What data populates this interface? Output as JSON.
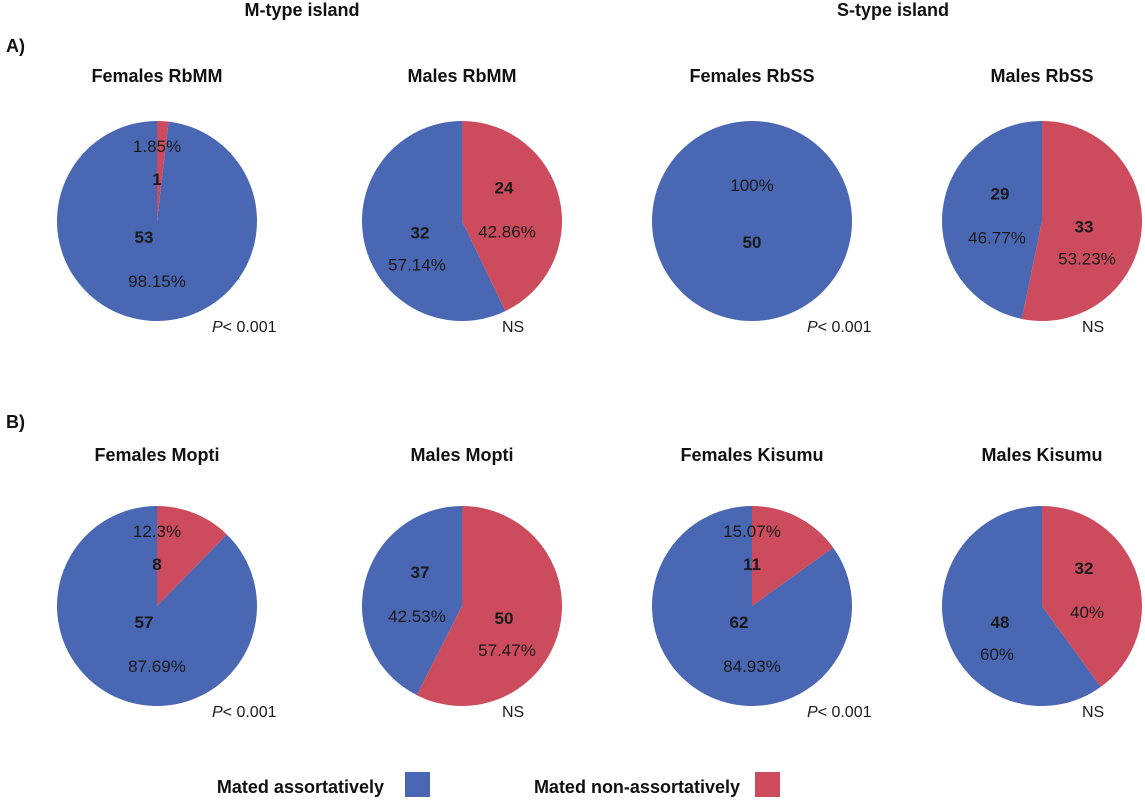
{
  "headers": {
    "m_type": "M-type island",
    "s_type": "S-type island"
  },
  "panels": {
    "a": "A)",
    "b": "B)"
  },
  "colors": {
    "assortative": "#4a67b4",
    "non_assortative": "#cc4b5c"
  },
  "legend": {
    "assortative": "Mated assortatively",
    "non_assortative": "Mated non-assortatively"
  },
  "chart_data": [
    {
      "type": "pie",
      "title": "Females RbMM",
      "categories": [
        "Mated assortatively",
        "Mated non-assortatively"
      ],
      "values": [
        53,
        1
      ],
      "percent_labels": [
        "98.15%",
        "1.85%"
      ],
      "stat_prefix": "P",
      "stat_suffix": "< 0.001"
    },
    {
      "type": "pie",
      "title": "Males RbMM",
      "categories": [
        "Mated assortatively",
        "Mated non-assortatively"
      ],
      "values": [
        32,
        24
      ],
      "percent_labels": [
        "57.14%",
        "42.86%"
      ],
      "stat_prefix": "",
      "stat_suffix": "NS"
    },
    {
      "type": "pie",
      "title": "Females RbSS",
      "categories": [
        "Mated assortatively",
        "Mated non-assortatively"
      ],
      "values": [
        50,
        0
      ],
      "percent_labels": [
        "100%",
        ""
      ],
      "stat_prefix": "P",
      "stat_suffix": "< 0.001"
    },
    {
      "type": "pie",
      "title": "Males RbSS",
      "categories": [
        "Mated assortatively",
        "Mated non-assortatively"
      ],
      "values": [
        29,
        33
      ],
      "percent_labels": [
        "46.77%",
        "53.23%"
      ],
      "stat_prefix": "",
      "stat_suffix": "NS"
    },
    {
      "type": "pie",
      "title": "Females Mopti",
      "categories": [
        "Mated assortatively",
        "Mated non-assortatively"
      ],
      "values": [
        57,
        8
      ],
      "percent_labels": [
        "87.69%",
        "12.3%"
      ],
      "stat_prefix": "P",
      "stat_suffix": "< 0.001"
    },
    {
      "type": "pie",
      "title": "Males Mopti",
      "categories": [
        "Mated assortatively",
        "Mated non-assortatively"
      ],
      "values": [
        37,
        50
      ],
      "percent_labels": [
        "42.53%",
        "57.47%"
      ],
      "stat_prefix": "",
      "stat_suffix": "NS"
    },
    {
      "type": "pie",
      "title": "Females Kisumu",
      "categories": [
        "Mated assortatively",
        "Mated non-assortatively"
      ],
      "values": [
        62,
        11
      ],
      "percent_labels": [
        "84.93%",
        "15.07%"
      ],
      "stat_prefix": "P",
      "stat_suffix": "< 0.001"
    },
    {
      "type": "pie",
      "title": "Males Kisumu",
      "categories": [
        "Mated assortatively",
        "Mated non-assortatively"
      ],
      "values": [
        48,
        32
      ],
      "percent_labels": [
        "60%",
        "40%"
      ],
      "stat_prefix": "",
      "stat_suffix": "NS"
    }
  ]
}
